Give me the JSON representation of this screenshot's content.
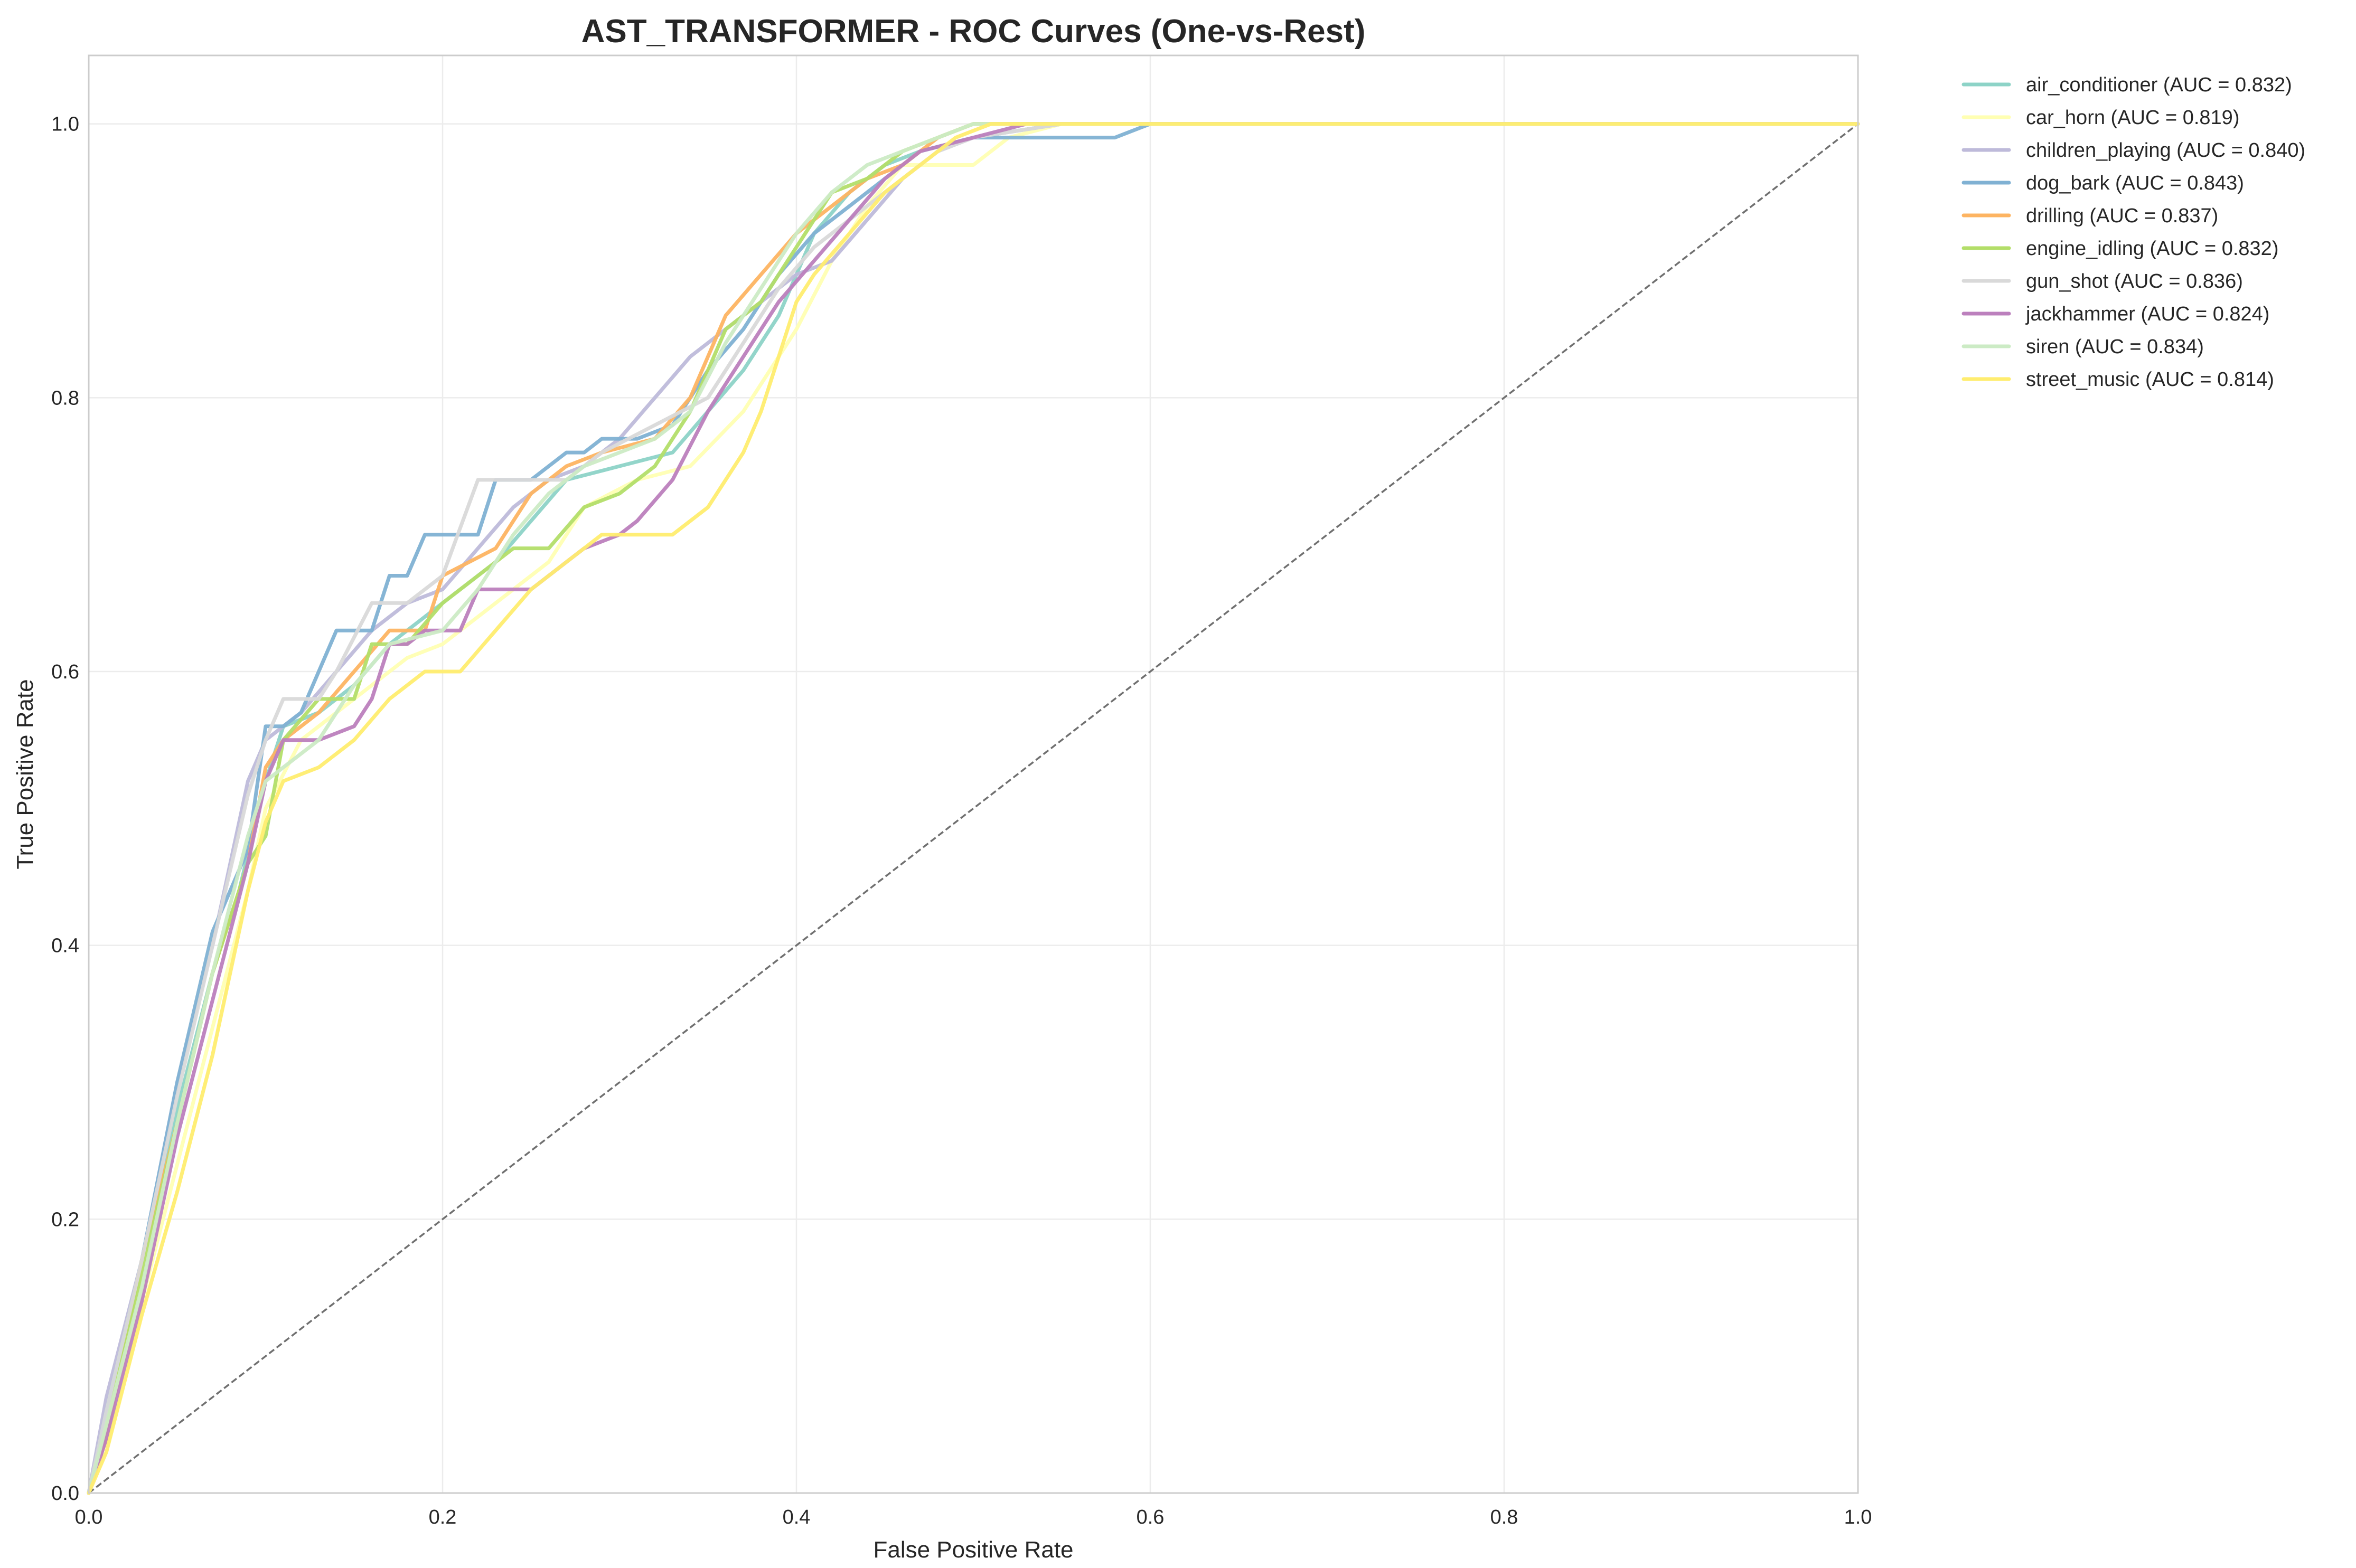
{
  "chart_data": {
    "type": "line",
    "title": "AST_TRANSFORMER - ROC Curves (One-vs-Rest)",
    "xlabel": "False Positive Rate",
    "ylabel": "True Positive Rate",
    "xlim": [
      0,
      1
    ],
    "ylim": [
      0,
      1.05
    ],
    "xticks": [
      0,
      0.2,
      0.4,
      0.6,
      0.8,
      1.0
    ],
    "xtick_labels": [
      "0.0",
      "0.2",
      "0.4",
      "0.6",
      "0.8",
      "1.0"
    ],
    "yticks": [
      0,
      0.2,
      0.4,
      0.6,
      0.8,
      1.0
    ],
    "ytick_labels": [
      "0.0",
      "0.2",
      "0.4",
      "0.6",
      "0.8",
      "1.0"
    ],
    "grid": true,
    "legend_position": "outside-top-right",
    "diagonal": {
      "x": [
        0,
        1
      ],
      "y": [
        0,
        1
      ],
      "color": "#707070",
      "style": "dashed"
    },
    "series": [
      {
        "name": "air_conditioner (AUC = 0.832)",
        "color": "#8dd3c7",
        "x": [
          0,
          0.01,
          0.03,
          0.05,
          0.07,
          0.085,
          0.1,
          0.11,
          0.13,
          0.15,
          0.17,
          0.2,
          0.23,
          0.25,
          0.27,
          0.3,
          0.33,
          0.35,
          0.37,
          0.39,
          0.41,
          0.43,
          0.45,
          0.47,
          0.5,
          0.55,
          0.6,
          1.0
        ],
        "y": [
          0,
          0.06,
          0.17,
          0.28,
          0.38,
          0.44,
          0.52,
          0.56,
          0.57,
          0.59,
          0.62,
          0.65,
          0.68,
          0.71,
          0.74,
          0.75,
          0.76,
          0.79,
          0.82,
          0.86,
          0.92,
          0.95,
          0.97,
          0.98,
          0.99,
          1.0,
          1.0,
          1.0
        ]
      },
      {
        "name": "car_horn (AUC = 0.819)",
        "color": "#ffffb3",
        "x": [
          0,
          0.01,
          0.03,
          0.05,
          0.07,
          0.09,
          0.1,
          0.12,
          0.14,
          0.16,
          0.18,
          0.2,
          0.23,
          0.26,
          0.28,
          0.31,
          0.34,
          0.37,
          0.4,
          0.42,
          0.44,
          0.46,
          0.5,
          0.52,
          0.55,
          0.6,
          1.0
        ],
        "y": [
          0,
          0.05,
          0.14,
          0.24,
          0.34,
          0.44,
          0.5,
          0.55,
          0.57,
          0.59,
          0.61,
          0.62,
          0.65,
          0.68,
          0.72,
          0.74,
          0.75,
          0.79,
          0.85,
          0.9,
          0.94,
          0.97,
          0.97,
          0.99,
          1.0,
          1.0,
          1.0
        ]
      },
      {
        "name": "children_playing (AUC = 0.840)",
        "color": "#bebada",
        "x": [
          0,
          0.01,
          0.03,
          0.05,
          0.07,
          0.09,
          0.1,
          0.12,
          0.14,
          0.16,
          0.18,
          0.2,
          0.22,
          0.24,
          0.26,
          0.28,
          0.3,
          0.32,
          0.34,
          0.36,
          0.38,
          0.4,
          0.42,
          0.44,
          0.46,
          0.48,
          0.5,
          0.55,
          1.0
        ],
        "y": [
          0,
          0.07,
          0.17,
          0.3,
          0.4,
          0.52,
          0.55,
          0.57,
          0.6,
          0.63,
          0.65,
          0.66,
          0.69,
          0.72,
          0.74,
          0.75,
          0.77,
          0.8,
          0.83,
          0.85,
          0.87,
          0.89,
          0.9,
          0.93,
          0.96,
          0.98,
          0.99,
          1.0,
          1.0
        ]
      },
      {
        "name": "dog_bark (AUC = 0.843)",
        "color": "#80b1d3",
        "x": [
          0,
          0.01,
          0.03,
          0.05,
          0.07,
          0.09,
          0.1,
          0.11,
          0.12,
          0.14,
          0.16,
          0.17,
          0.18,
          0.19,
          0.22,
          0.23,
          0.25,
          0.27,
          0.28,
          0.29,
          0.31,
          0.33,
          0.35,
          0.37,
          0.39,
          0.41,
          0.43,
          0.45,
          0.47,
          0.5,
          0.58,
          0.6,
          1.0
        ],
        "y": [
          0,
          0.06,
          0.17,
          0.3,
          0.41,
          0.47,
          0.56,
          0.56,
          0.57,
          0.63,
          0.63,
          0.67,
          0.67,
          0.7,
          0.7,
          0.74,
          0.74,
          0.76,
          0.76,
          0.77,
          0.77,
          0.78,
          0.82,
          0.85,
          0.89,
          0.92,
          0.94,
          0.96,
          0.98,
          0.99,
          0.99,
          1.0,
          1.0
        ]
      },
      {
        "name": "drilling (AUC = 0.837)",
        "color": "#fdb462",
        "x": [
          0,
          0.01,
          0.03,
          0.05,
          0.07,
          0.09,
          0.1,
          0.11,
          0.13,
          0.15,
          0.17,
          0.19,
          0.2,
          0.23,
          0.25,
          0.27,
          0.29,
          0.32,
          0.34,
          0.36,
          0.38,
          0.4,
          0.42,
          0.44,
          0.46,
          0.48,
          0.5,
          0.55,
          1.0
        ],
        "y": [
          0,
          0.04,
          0.17,
          0.27,
          0.38,
          0.46,
          0.53,
          0.55,
          0.57,
          0.6,
          0.63,
          0.63,
          0.67,
          0.69,
          0.73,
          0.75,
          0.76,
          0.77,
          0.8,
          0.86,
          0.89,
          0.92,
          0.94,
          0.96,
          0.97,
          0.99,
          1.0,
          1.0,
          1.0
        ]
      },
      {
        "name": "engine_idling (AUC = 0.832)",
        "color": "#b3de69",
        "x": [
          0,
          0.01,
          0.03,
          0.05,
          0.07,
          0.09,
          0.1,
          0.11,
          0.13,
          0.15,
          0.16,
          0.18,
          0.2,
          0.22,
          0.24,
          0.26,
          0.28,
          0.3,
          0.32,
          0.34,
          0.36,
          0.38,
          0.4,
          0.42,
          0.44,
          0.46,
          0.48,
          0.5,
          0.55,
          1.0
        ],
        "y": [
          0,
          0.05,
          0.16,
          0.27,
          0.38,
          0.46,
          0.48,
          0.55,
          0.58,
          0.58,
          0.62,
          0.62,
          0.65,
          0.67,
          0.69,
          0.69,
          0.72,
          0.73,
          0.75,
          0.79,
          0.85,
          0.87,
          0.91,
          0.95,
          0.96,
          0.98,
          0.99,
          1.0,
          1.0,
          1.0
        ]
      },
      {
        "name": "gun_shot (AUC = 0.836)",
        "color": "#d9d9d9",
        "x": [
          0,
          0.01,
          0.03,
          0.05,
          0.07,
          0.09,
          0.1,
          0.11,
          0.13,
          0.14,
          0.16,
          0.18,
          0.2,
          0.22,
          0.25,
          0.27,
          0.29,
          0.32,
          0.35,
          0.37,
          0.39,
          0.41,
          0.43,
          0.45,
          0.47,
          0.48,
          0.5,
          0.55,
          1.0
        ],
        "y": [
          0,
          0.06,
          0.17,
          0.29,
          0.4,
          0.51,
          0.55,
          0.58,
          0.58,
          0.6,
          0.65,
          0.65,
          0.67,
          0.74,
          0.74,
          0.74,
          0.76,
          0.78,
          0.8,
          0.84,
          0.88,
          0.91,
          0.93,
          0.95,
          0.97,
          0.98,
          0.99,
          1.0,
          1.0
        ]
      },
      {
        "name": "jackhammer (AUC = 0.824)",
        "color": "#bc80bd",
        "x": [
          0,
          0.01,
          0.03,
          0.05,
          0.07,
          0.09,
          0.1,
          0.11,
          0.13,
          0.15,
          0.16,
          0.17,
          0.18,
          0.19,
          0.21,
          0.22,
          0.25,
          0.27,
          0.28,
          0.3,
          0.31,
          0.33,
          0.35,
          0.37,
          0.39,
          0.41,
          0.43,
          0.45,
          0.47,
          0.5,
          0.53,
          0.6,
          1.0
        ],
        "y": [
          0,
          0.04,
          0.14,
          0.26,
          0.36,
          0.46,
          0.52,
          0.55,
          0.55,
          0.56,
          0.58,
          0.62,
          0.62,
          0.63,
          0.63,
          0.66,
          0.66,
          0.68,
          0.69,
          0.7,
          0.71,
          0.74,
          0.79,
          0.83,
          0.87,
          0.9,
          0.93,
          0.96,
          0.98,
          0.99,
          1.0,
          1.0,
          1.0
        ]
      },
      {
        "name": "siren (AUC = 0.834)",
        "color": "#ccebc5",
        "x": [
          0,
          0.01,
          0.03,
          0.05,
          0.07,
          0.09,
          0.1,
          0.11,
          0.13,
          0.15,
          0.17,
          0.2,
          0.22,
          0.24,
          0.26,
          0.28,
          0.3,
          0.32,
          0.34,
          0.36,
          0.38,
          0.4,
          0.42,
          0.44,
          0.46,
          0.48,
          0.5,
          0.55,
          1.0
        ],
        "y": [
          0,
          0.05,
          0.15,
          0.27,
          0.38,
          0.48,
          0.52,
          0.53,
          0.55,
          0.59,
          0.62,
          0.63,
          0.66,
          0.7,
          0.73,
          0.75,
          0.76,
          0.77,
          0.79,
          0.84,
          0.88,
          0.92,
          0.95,
          0.97,
          0.98,
          0.99,
          1.0,
          1.0,
          1.0
        ]
      },
      {
        "name": "street_music (AUC = 0.814)",
        "color": "#ffed6f",
        "x": [
          0,
          0.01,
          0.03,
          0.05,
          0.07,
          0.09,
          0.1,
          0.11,
          0.13,
          0.15,
          0.17,
          0.19,
          0.21,
          0.23,
          0.25,
          0.27,
          0.29,
          0.31,
          0.33,
          0.35,
          0.37,
          0.38,
          0.39,
          0.4,
          0.41,
          0.43,
          0.45,
          0.47,
          0.49,
          0.51,
          0.55,
          1.0
        ],
        "y": [
          0,
          0.03,
          0.13,
          0.22,
          0.32,
          0.44,
          0.49,
          0.52,
          0.53,
          0.55,
          0.58,
          0.6,
          0.6,
          0.63,
          0.66,
          0.68,
          0.7,
          0.7,
          0.7,
          0.72,
          0.76,
          0.79,
          0.83,
          0.87,
          0.89,
          0.92,
          0.95,
          0.97,
          0.99,
          1.0,
          1.0,
          1.0
        ]
      }
    ]
  }
}
